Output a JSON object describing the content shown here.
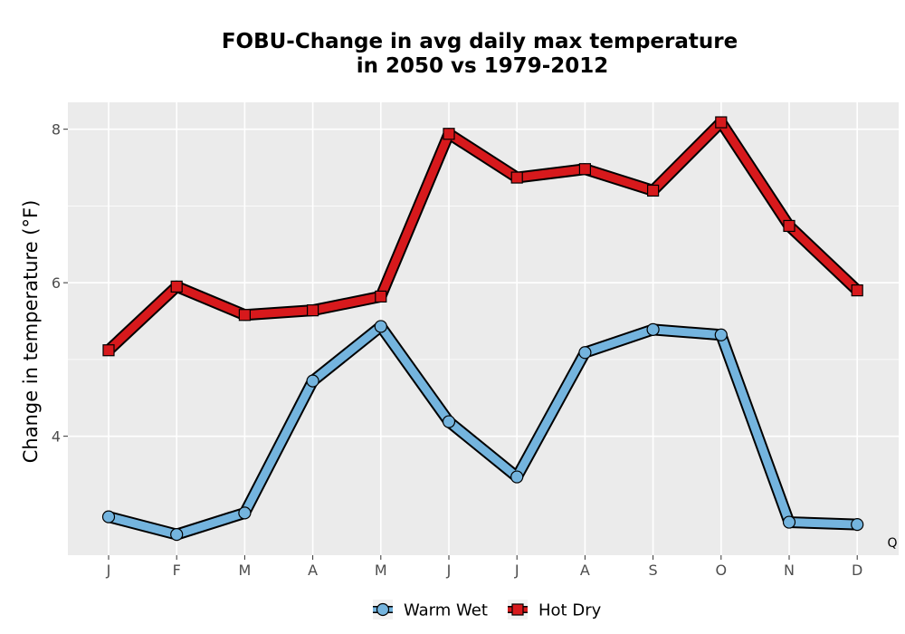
{
  "chart_data": {
    "type": "line",
    "title_line1": "FOBU-Change in avg daily max temperature",
    "title_line2": "in 2050 vs 1979-2012",
    "xlabel": "",
    "ylabel": "Change in temperature (°F)",
    "categories": [
      "J",
      "F",
      "M",
      "A",
      "M",
      "J",
      "J",
      "A",
      "S",
      "O",
      "N",
      "D"
    ],
    "ylim": [
      2.45,
      8.35
    ],
    "yticks": [
      4,
      6,
      8
    ],
    "grid": true,
    "legend_position": "bottom",
    "series": [
      {
        "name": "Warm Wet",
        "marker": "circle",
        "color": "#74b4de",
        "values": [
          2.95,
          2.72,
          3.0,
          4.72,
          5.43,
          4.19,
          3.47,
          5.09,
          5.39,
          5.32,
          2.88,
          2.85
        ]
      },
      {
        "name": "Hot Dry",
        "marker": "square",
        "color": "#d7191c",
        "values": [
          5.12,
          5.95,
          5.58,
          5.64,
          5.82,
          7.94,
          7.37,
          7.48,
          7.2,
          8.09,
          6.74,
          5.9
        ]
      }
    ],
    "corner_label": "Q"
  }
}
